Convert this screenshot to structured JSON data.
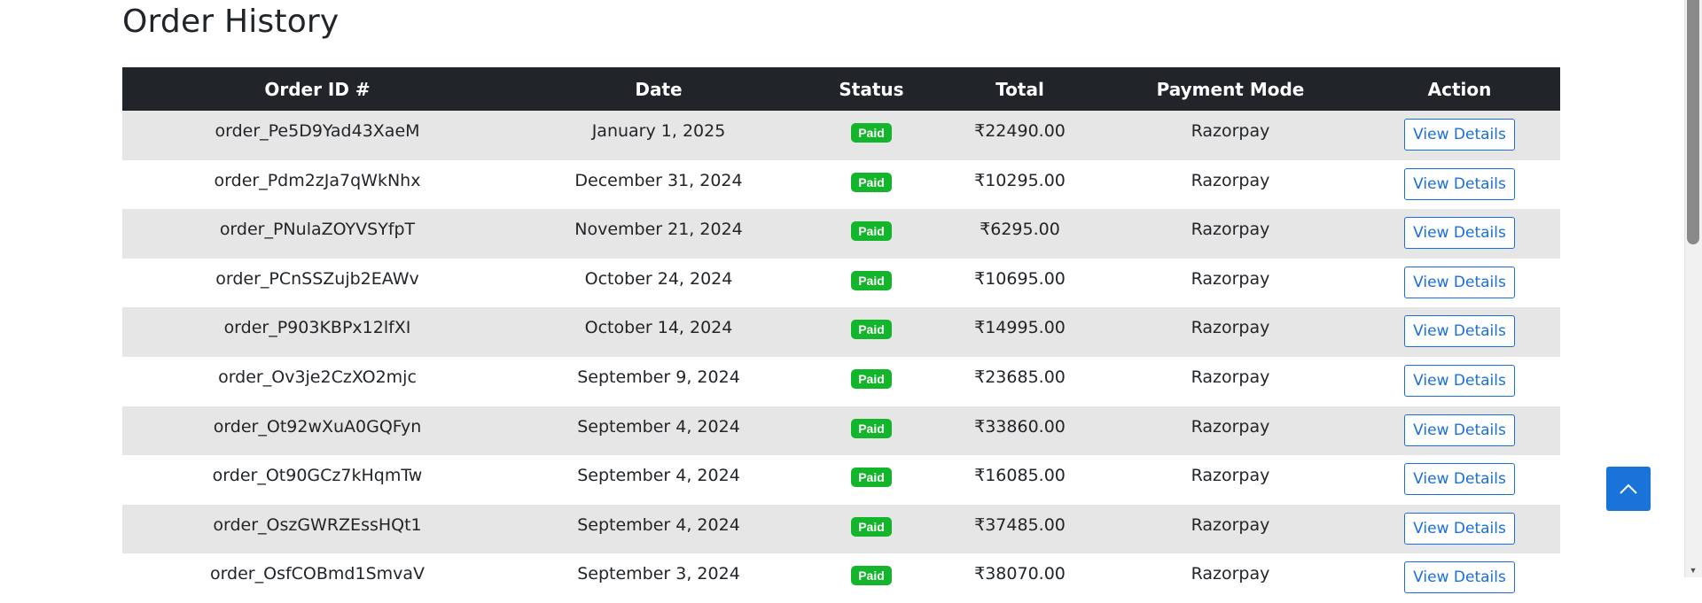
{
  "page": {
    "title": "Order History"
  },
  "table": {
    "headers": [
      "Order ID #",
      "Date",
      "Status",
      "Total",
      "Payment Mode",
      "Action"
    ],
    "rows": [
      {
        "order_id": "order_Pe5D9Yad43XaeM",
        "date": "January 1, 2025",
        "status": "Paid",
        "total": "₹22490.00",
        "payment_mode": "Razorpay",
        "action": "View Details"
      },
      {
        "order_id": "order_Pdm2zJa7qWkNhx",
        "date": "December 31, 2024",
        "status": "Paid",
        "total": "₹10295.00",
        "payment_mode": "Razorpay",
        "action": "View Details"
      },
      {
        "order_id": "order_PNulaZOYVSYfpT",
        "date": "November 21, 2024",
        "status": "Paid",
        "total": "₹6295.00",
        "payment_mode": "Razorpay",
        "action": "View Details"
      },
      {
        "order_id": "order_PCnSSZujb2EAWv",
        "date": "October 24, 2024",
        "status": "Paid",
        "total": "₹10695.00",
        "payment_mode": "Razorpay",
        "action": "View Details"
      },
      {
        "order_id": "order_P903KBPx12lfXI",
        "date": "October 14, 2024",
        "status": "Paid",
        "total": "₹14995.00",
        "payment_mode": "Razorpay",
        "action": "View Details"
      },
      {
        "order_id": "order_Ov3je2CzXO2mjc",
        "date": "September 9, 2024",
        "status": "Paid",
        "total": "₹23685.00",
        "payment_mode": "Razorpay",
        "action": "View Details"
      },
      {
        "order_id": "order_Ot92wXuA0GQFyn",
        "date": "September 4, 2024",
        "status": "Paid",
        "total": "₹33860.00",
        "payment_mode": "Razorpay",
        "action": "View Details"
      },
      {
        "order_id": "order_Ot90GCz7kHqmTw",
        "date": "September 4, 2024",
        "status": "Paid",
        "total": "₹16085.00",
        "payment_mode": "Razorpay",
        "action": "View Details"
      },
      {
        "order_id": "order_OszGWRZEssHQt1",
        "date": "September 4, 2024",
        "status": "Paid",
        "total": "₹37485.00",
        "payment_mode": "Razorpay",
        "action": "View Details"
      },
      {
        "order_id": "order_OsfCOBmd1SmvaV",
        "date": "September 3, 2024",
        "status": "Paid",
        "total": "₹38070.00",
        "payment_mode": "Razorpay",
        "action": "View Details"
      }
    ]
  },
  "icons": {
    "scroll_top": "chevron-up-icon",
    "scrollbar_down": "scroll-down-arrow-icon"
  },
  "colors": {
    "header_bg": "#212529",
    "row_alt_bg": "#e6e6e6",
    "badge_paid": "#13b62b",
    "link_blue": "#1a6fe0",
    "scroll_top_bg": "#1a73d9"
  }
}
